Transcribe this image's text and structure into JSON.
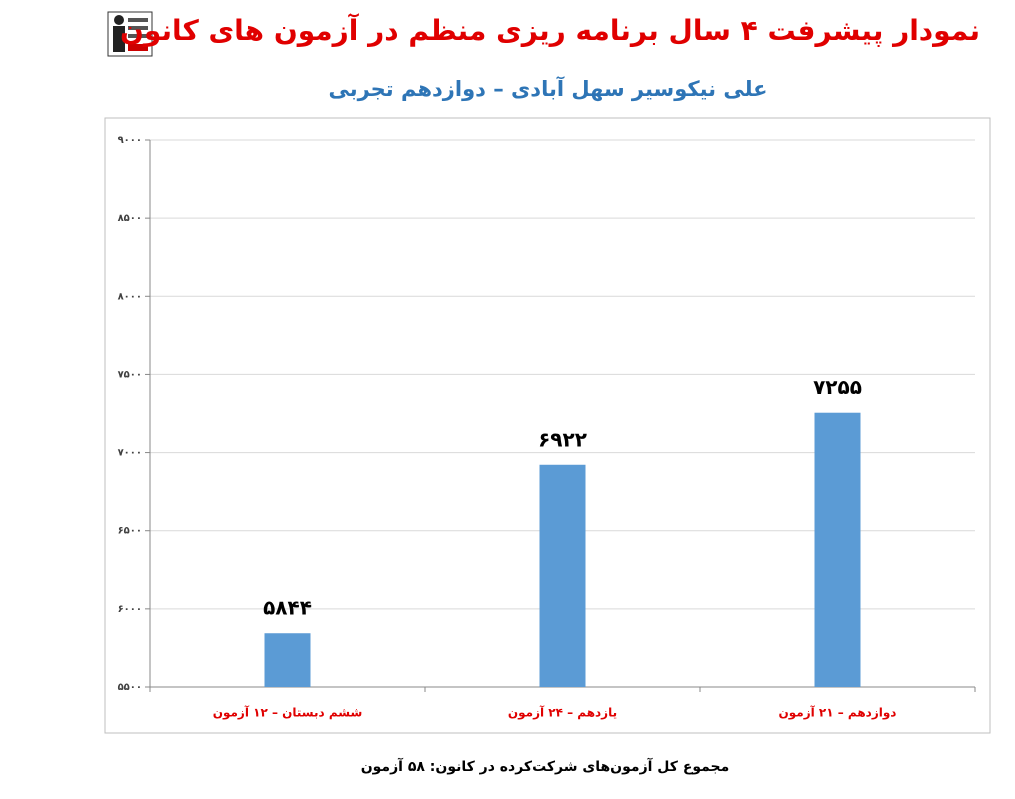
{
  "chart_data": {
    "type": "bar",
    "title": "نمودار پیشرفت ۴ سال برنامه ریزی منظم در آزمون های کانون",
    "subtitle": "علی نیکوسیر سهل آبادی – دوازدهم تجربی",
    "categories": [
      "ششم دبستان – ۱۲ آزمون",
      "یازدهم – ۲۴ آزمون",
      "دوازدهم – ۲۱ آزمون"
    ],
    "values": [
      5844,
      6922,
      7255
    ],
    "value_labels": [
      "۵۸۴۴",
      "۶۹۲۲",
      "۷۲۵۵"
    ],
    "color": "#5b9bd5",
    "ylim": [
      5500,
      9000
    ],
    "yticks": [
      {
        "value": 5500,
        "label": "۵۵۰۰"
      },
      {
        "value": 6000,
        "label": "۶۰۰۰"
      },
      {
        "value": 6500,
        "label": "۶۵۰۰"
      },
      {
        "value": 7000,
        "label": "۷۰۰۰"
      },
      {
        "value": 7500,
        "label": "۷۵۰۰"
      },
      {
        "value": 8000,
        "label": "۸۰۰۰"
      },
      {
        "value": 8500,
        "label": "۸۵۰۰"
      },
      {
        "value": 9000,
        "label": "۹۰۰۰"
      }
    ],
    "grid": true,
    "footnote": "مجموع کل آزمون‌های شرکت‌کرده در کانون: ۵۸ آزمون"
  }
}
